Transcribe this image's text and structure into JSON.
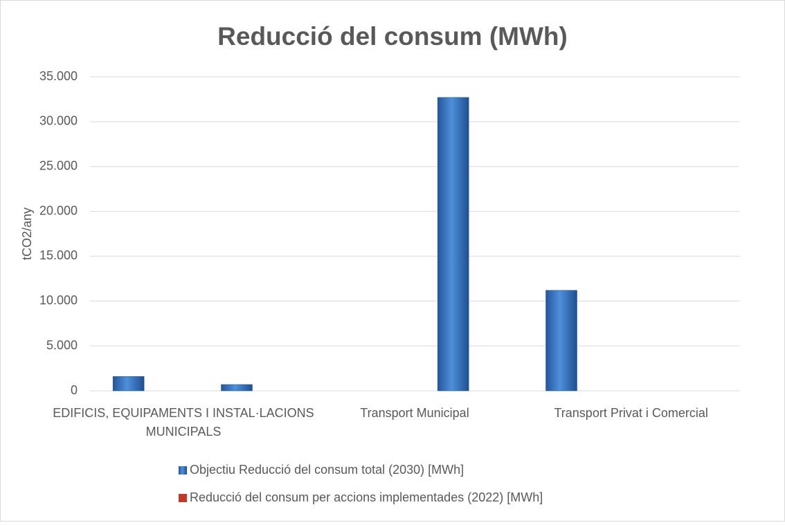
{
  "chart_data": {
    "type": "bar",
    "title": "Reducció del consum (MWh)",
    "y_label": "tCO2/any",
    "categories": [
      "EDIFICIS, EQUIPAMENTS I INSTAL·LACIONS MUNICIPALS",
      null,
      "Transport Municipal",
      null,
      "Transport Privat i Comercial",
      null
    ],
    "series": [
      {
        "name": "Objectiu Reducció del consum total (2030) [MWh]",
        "color": "#3a78c9",
        "values": [
          1600,
          700,
          0,
          32700,
          11200,
          0
        ]
      },
      {
        "name": "Reducció del consum per accions implementades (2022) [MWh]",
        "color": "#c0392b",
        "values": [
          0,
          0,
          0,
          0,
          0,
          0
        ]
      }
    ],
    "ylim": [
      0,
      35000
    ],
    "yticks": [
      0,
      {
        "value": 5000,
        "label": "5.000"
      },
      {
        "value": 10000,
        "label": "10.000"
      },
      {
        "value": 15000,
        "label": "15.000"
      },
      {
        "value": 20000,
        "label": "20.000"
      },
      {
        "value": 25000,
        "label": "25.000"
      },
      {
        "value": 30000,
        "label": "30.000"
      },
      {
        "value": 35000,
        "label": "35.000"
      }
    ],
    "grid": true,
    "legend": "bottom"
  }
}
